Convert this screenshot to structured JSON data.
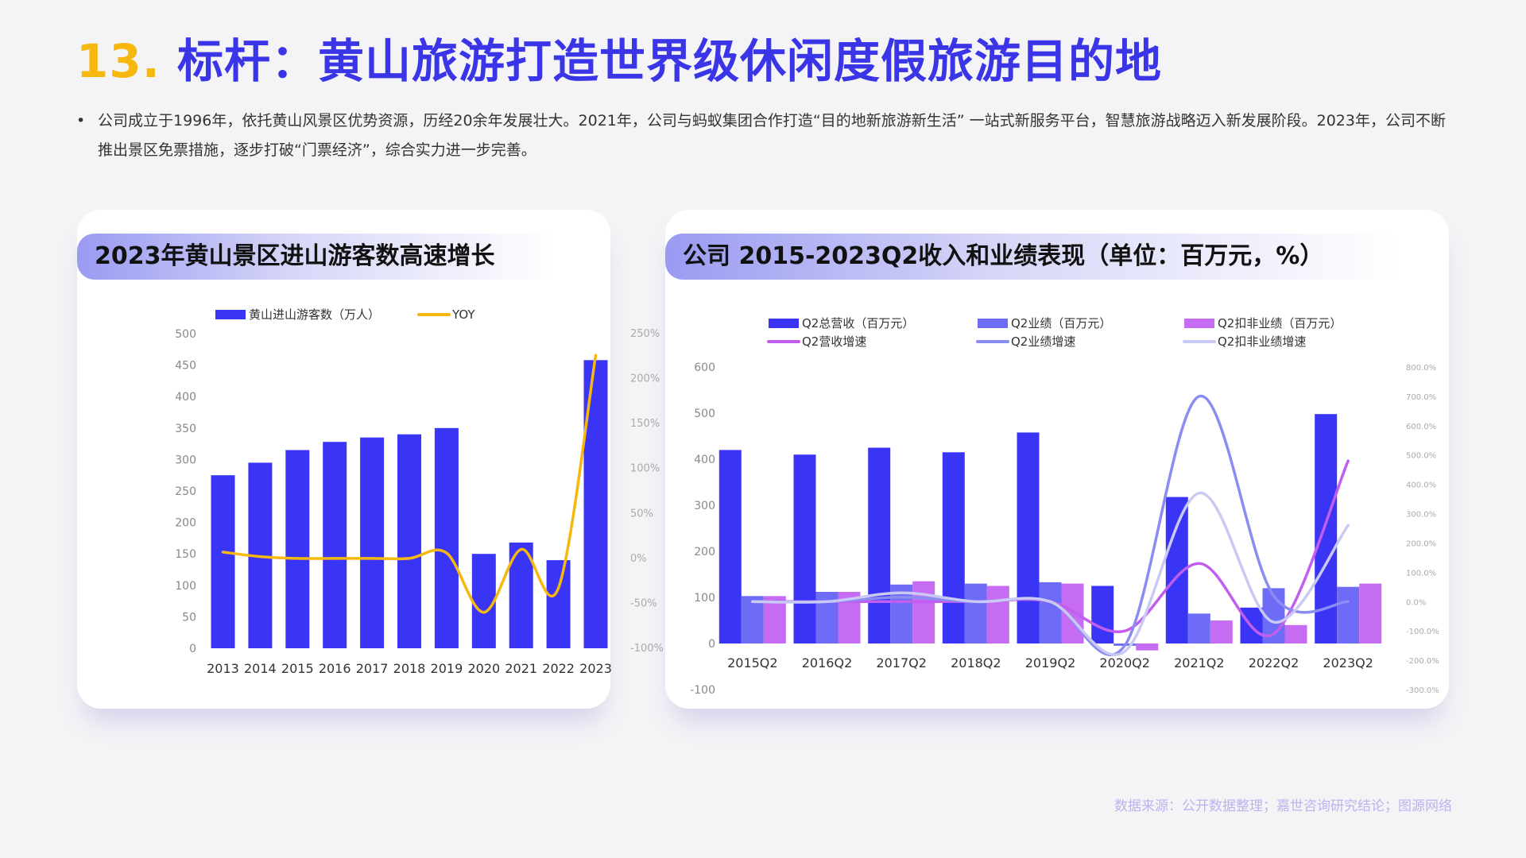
{
  "header": {
    "number": "13.",
    "title": "标杆：黄山旅游打造世界级休闲度假旅游目的地"
  },
  "intro": {
    "bullet": "•",
    "text": "公司成立于1996年，依托黄山风景区优势资源，历经20余年发展壮大。2021年，公司与蚂蚁集团合作打造“目的地新旅游新生活” 一站式新服务平台，智慧旅游战略迈入新发展阶段。2023年，公司不断推出景区免票措施，逐步打破“门票经济”，综合实力进一步完善。"
  },
  "source": "数据来源：公开数据整理；嘉世咨询研究结论；图源网络",
  "colors": {
    "bar_blue": "#3a35f5",
    "yoy_orange": "#f6b70f",
    "title_yellow": "#f6b70f",
    "title_blue": "#3a35e6"
  },
  "chart_data": [
    {
      "type": "bar",
      "title": "2023年黄山景区进山游客数高速增长",
      "categories": [
        "2013",
        "2014",
        "2015",
        "2016",
        "2017",
        "2018",
        "2019",
        "2020",
        "2021",
        "2022",
        "2023"
      ],
      "series": [
        {
          "name": "黄山进山游客数（万人）",
          "type": "bar",
          "axis": "left",
          "color": "#3a35f5",
          "values": [
            275,
            295,
            315,
            328,
            335,
            340,
            350,
            150,
            168,
            140,
            458
          ]
        },
        {
          "name": "YOY",
          "type": "line",
          "axis": "right",
          "color": "#f6b70f",
          "values": [
            7,
            2,
            0,
            0,
            0,
            0,
            6,
            -60,
            10,
            -33,
            226
          ]
        }
      ],
      "ylim_left": [
        0,
        500
      ],
      "yticks_left": [
        "0",
        "50",
        "100",
        "150",
        "200",
        "250",
        "300",
        "350",
        "400",
        "450",
        "500"
      ],
      "ylim_right": [
        -100,
        250
      ],
      "yticks_right": [
        "-100%",
        "-50%",
        "0%",
        "50%",
        "100%",
        "150%",
        "200%",
        "250%"
      ],
      "legend": "top-center"
    },
    {
      "type": "bar",
      "title": "公司 2015-2023Q2收入和业绩表现（单位：百万元，%）",
      "categories": [
        "2015Q2",
        "2016Q2",
        "2017Q2",
        "2018Q2",
        "2019Q2",
        "2020Q2",
        "2021Q2",
        "2022Q2",
        "2023Q2"
      ],
      "series": [
        {
          "name": "Q2总营收（百万元）",
          "type": "bar",
          "axis": "left",
          "color": "#3a35f5",
          "values": [
            420,
            410,
            425,
            415,
            458,
            125,
            318,
            78,
            498
          ]
        },
        {
          "name": "Q2业绩（百万元）",
          "type": "bar",
          "axis": "left",
          "color": "#6e6cf6",
          "values": [
            103,
            112,
            128,
            130,
            133,
            -5,
            65,
            120,
            123
          ]
        },
        {
          "name": "Q2扣非业绩（百万元）",
          "type": "bar",
          "axis": "left",
          "color": "#c56cf2",
          "values": [
            103,
            112,
            135,
            125,
            130,
            -15,
            50,
            40,
            130
          ]
        },
        {
          "name": "Q2营收增速",
          "type": "line",
          "axis": "right",
          "color": "#c15ef0",
          "values": [
            0,
            0,
            0,
            0,
            0,
            -100,
            130,
            -110,
            480
          ]
        },
        {
          "name": "Q2业绩增速",
          "type": "line",
          "axis": "right",
          "color": "#8b8cf1",
          "values": [
            0,
            0,
            15,
            0,
            0,
            -150,
            700,
            20,
            0
          ]
        },
        {
          "name": "Q2扣非业绩增速",
          "type": "line",
          "axis": "right",
          "color": "#c9c9f4",
          "values": [
            0,
            0,
            30,
            0,
            0,
            -170,
            370,
            -70,
            260
          ]
        }
      ],
      "ylim_left": [
        -100,
        600
      ],
      "yticks_left": [
        "-100",
        "0",
        "100",
        "200",
        "300",
        "400",
        "500",
        "600"
      ],
      "ylim_right": [
        -300,
        800
      ],
      "yticks_right": [
        "-300.0%",
        "-200.0%",
        "-100.0%",
        "0.0%",
        "100.0%",
        "200.0%",
        "300.0%",
        "400.0%",
        "500.0%",
        "600.0%",
        "700.0%",
        "800.0%"
      ],
      "legend": "top"
    }
  ]
}
